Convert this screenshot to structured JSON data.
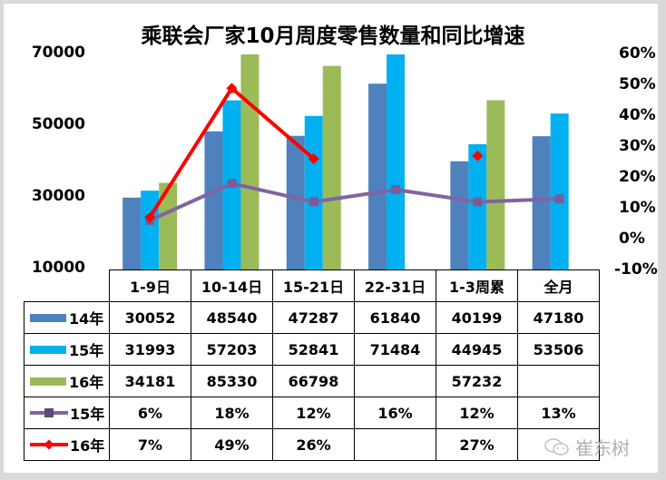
{
  "title": "乘联会厂家10月周度零售数量和同比增速",
  "watermark": "崔东树",
  "colors": {
    "s14": "#4f81bd",
    "s15": "#00b0f0",
    "s16": "#9bbb59",
    "g15": "#8064a2",
    "g16": "#ff0000"
  },
  "axes": {
    "left_ticks": [
      "70000",
      "50000",
      "30000",
      "10000"
    ],
    "right_ticks": [
      "60%",
      "50%",
      "40%",
      "30%",
      "20%",
      "10%",
      "0%",
      "-10%"
    ]
  },
  "table": {
    "headers": [
      "1-9日",
      "10-14日",
      "15-21日",
      "22-31日",
      "1-3周累",
      "全月"
    ],
    "rows": [
      {
        "label": "14年",
        "cells": [
          "30052",
          "48540",
          "47287",
          "61840",
          "40199",
          "47180"
        ]
      },
      {
        "label": "15年",
        "cells": [
          "31993",
          "57203",
          "52841",
          "71484",
          "44945",
          "53506"
        ]
      },
      {
        "label": "16年",
        "cells": [
          "34181",
          "85330",
          "66798",
          "",
          "57232",
          ""
        ]
      },
      {
        "label": "15年",
        "cells": [
          "6%",
          "18%",
          "12%",
          "16%",
          "12%",
          "13%"
        ]
      },
      {
        "label": "16年",
        "cells": [
          "7%",
          "49%",
          "26%",
          "",
          "27%",
          ""
        ]
      }
    ]
  },
  "chart_data": {
    "type": "bar",
    "title": "乘联会厂家10月周度零售数量和同比增速",
    "categories": [
      "1-9日",
      "10-14日",
      "15-21日",
      "22-31日",
      "1-3周累",
      "全月"
    ],
    "series": [
      {
        "name": "14年",
        "type": "bar",
        "axis": "left",
        "values": [
          30052,
          48540,
          47287,
          61840,
          40199,
          47180
        ]
      },
      {
        "name": "15年",
        "type": "bar",
        "axis": "left",
        "values": [
          31993,
          57203,
          52841,
          71484,
          44945,
          53506
        ]
      },
      {
        "name": "16年",
        "type": "bar",
        "axis": "left",
        "values": [
          34181,
          85330,
          66798,
          null,
          57232,
          null
        ]
      },
      {
        "name": "15年",
        "type": "line",
        "axis": "right",
        "values": [
          6,
          18,
          12,
          16,
          12,
          13
        ]
      },
      {
        "name": "16年",
        "type": "line",
        "axis": "right",
        "values": [
          7,
          49,
          26,
          null,
          27,
          null
        ]
      }
    ],
    "ylim_left": [
      10000,
      70000
    ],
    "ylim_right": [
      -10,
      60
    ],
    "left_ticks": [
      10000,
      30000,
      50000,
      70000
    ],
    "right_ticks": [
      -10,
      0,
      10,
      20,
      30,
      40,
      50,
      60
    ],
    "xlabel": "",
    "ylabel": "",
    "legend_position": "data-table",
    "grid": false
  }
}
